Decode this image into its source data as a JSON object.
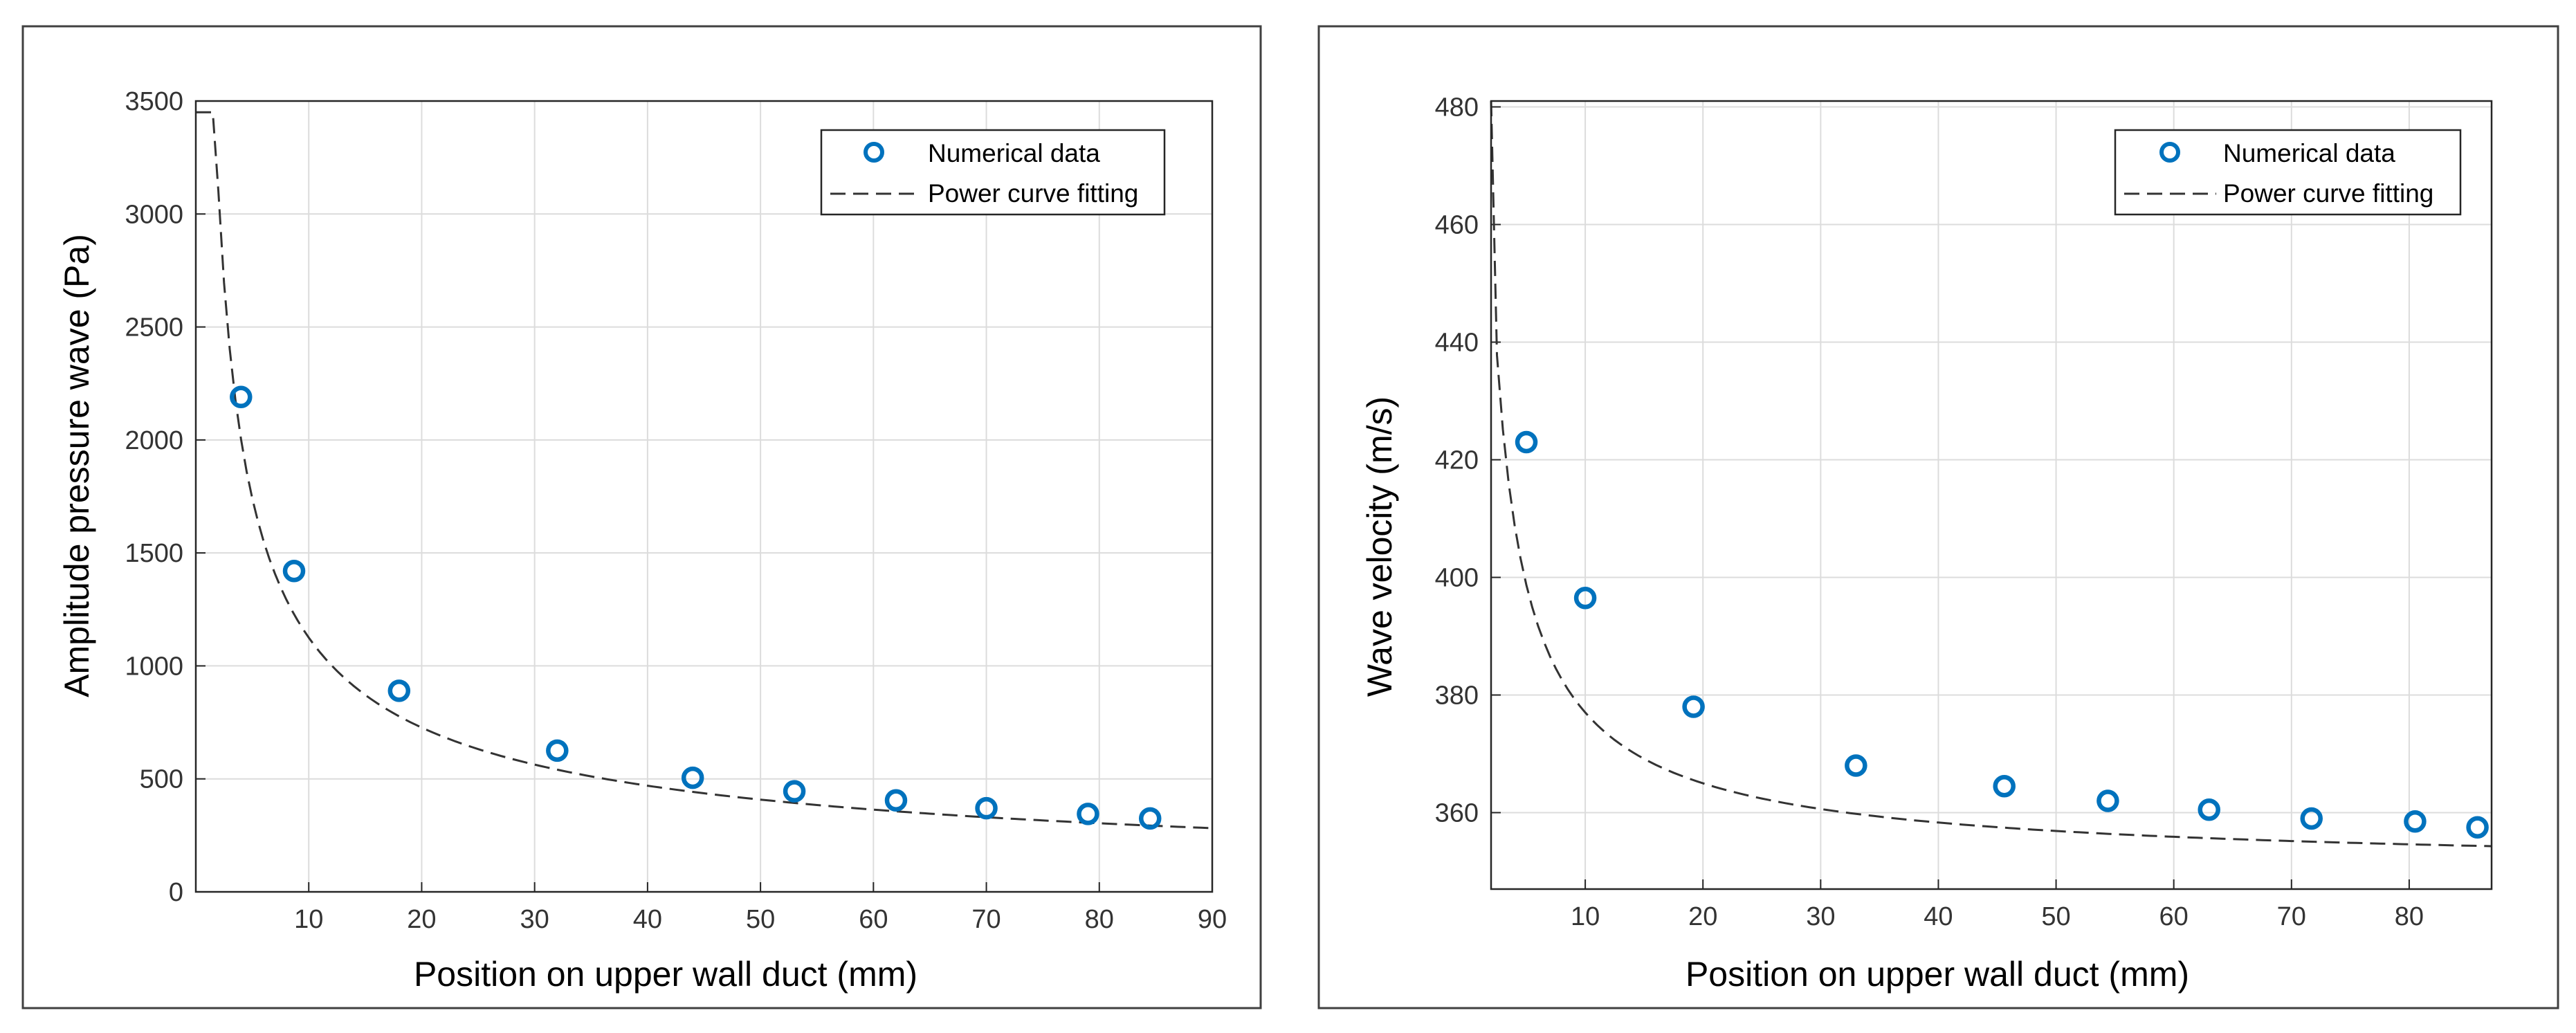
{
  "charts": [
    {
      "id": "amplitude",
      "type": "scatter",
      "title": "",
      "xlabel": "Position on upper wall duct   (mm)",
      "ylabel": "Amplitude pressure wave   (Pa)",
      "xlim": [
        0,
        90
      ],
      "ylim": [
        0,
        3500
      ],
      "xticks": [
        10,
        20,
        30,
        40,
        50,
        60,
        70,
        80,
        90
      ],
      "yticks": [
        0,
        500,
        1000,
        1500,
        2000,
        2500,
        3000,
        3500
      ],
      "grid": true,
      "legend_position": "top-right",
      "series": [
        {
          "name": "Numerical data",
          "style": "circle-marker",
          "color": "#0072BD",
          "x": [
            4,
            8.7,
            18,
            32,
            44,
            53,
            62,
            70,
            79,
            84.5
          ],
          "y": [
            2190,
            1420,
            890,
            625,
            505,
            445,
            405,
            370,
            345,
            325
          ]
        },
        {
          "name": "Power curve fitting",
          "style": "dashed-line",
          "color": "#333333",
          "fit": {
            "model": "a*x^b",
            "a": 4800,
            "b": -0.63
          },
          "x_range": [
            0,
            90
          ],
          "y_at_x0": 3450
        }
      ]
    },
    {
      "id": "velocity",
      "type": "scatter",
      "title": "",
      "xlabel": "Position on upper wall duct   (mm)",
      "ylabel": "Wave velocity   (m/s)",
      "xlim": [
        2,
        87
      ],
      "ylim": [
        347,
        481
      ],
      "xticks": [
        10,
        20,
        30,
        40,
        50,
        60,
        70,
        80
      ],
      "yticks": [
        360,
        380,
        400,
        420,
        440,
        460,
        480
      ],
      "grid": true,
      "legend_position": "top-right",
      "series": [
        {
          "name": "Numerical data",
          "style": "circle-marker",
          "color": "#0072BD",
          "x": [
            5,
            10,
            19.2,
            33,
            45.6,
            54.4,
            63,
            71.7,
            80.5,
            85.8
          ],
          "y": [
            423,
            396.5,
            378,
            368,
            364.5,
            362,
            360.5,
            359,
            358.5,
            357.5
          ]
        },
        {
          "name": "Power curve fitting",
          "style": "dashed-line",
          "color": "#333333",
          "fit": {
            "model": "c + a*x^b",
            "c": 350,
            "a": 191.3,
            "b": -0.85
          },
          "x_range": [
            2,
            87
          ],
          "y_at_x0": 481
        }
      ]
    }
  ]
}
